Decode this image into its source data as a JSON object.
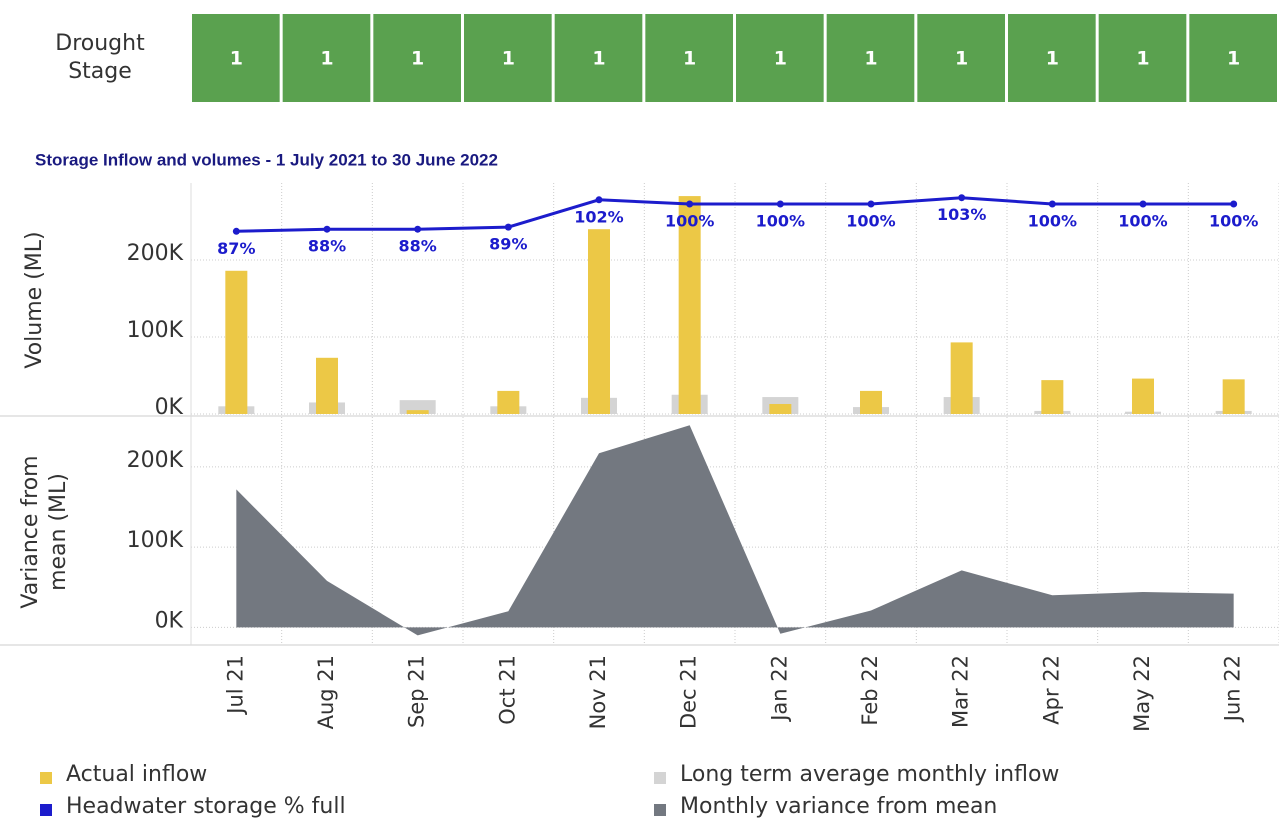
{
  "drought_stage": {
    "label": "Drought Stage",
    "values": [
      1,
      1,
      1,
      1,
      1,
      1,
      1,
      1,
      1,
      1,
      1,
      1
    ],
    "color": "#5aa14f"
  },
  "chart_data": [
    {
      "type": "bar",
      "title": "Storage Inflow and volumes - 1 July 2021 to 30 June 2022",
      "y_label": "Volume (ML)",
      "ylim": [
        0,
        300000
      ],
      "yticks": [
        {
          "value": 0,
          "label": "0K"
        },
        {
          "value": 100000,
          "label": "100K"
        },
        {
          "value": 200000,
          "label": "200K"
        }
      ],
      "y2lim": [
        0,
        110
      ],
      "grid": true,
      "series": [
        {
          "name": "Actual inflow",
          "color": "#ecc846",
          "values": [
            186000,
            73000,
            5000,
            30000,
            240000,
            283000,
            13000,
            30000,
            93000,
            44000,
            46000,
            45000
          ]
        },
        {
          "name": "Headwater storage % full",
          "color": "#1c1ccc",
          "axis": "y2",
          "values": [
            87,
            88,
            88,
            89,
            102,
            100,
            100,
            100,
            103,
            100,
            100,
            100
          ],
          "value_labels": [
            "87%",
            "88%",
            "88%",
            "89%",
            "102%",
            "100%",
            "100%",
            "100%",
            "103%",
            "100%",
            "100%",
            "100%"
          ]
        },
        {
          "name": "Long term average monthly inflow",
          "color": "#d4d4d4",
          "values": [
            10000,
            15000,
            18000,
            10000,
            21000,
            25000,
            22000,
            9000,
            22000,
            4000,
            3000,
            4000
          ]
        }
      ]
    },
    {
      "type": "area",
      "y_label": "Variance from mean (ML)",
      "categories": [
        "Jul 21",
        "Aug 21",
        "Sep 21",
        "Oct 21",
        "Nov 21",
        "Dec 21",
        "Jan 22",
        "Feb 22",
        "Mar 22",
        "Apr 22",
        "May 22",
        "Jun 22"
      ],
      "ylim": [
        -22000,
        261000
      ],
      "yticks": [
        {
          "value": 0,
          "label": "0K"
        },
        {
          "value": 100000,
          "label": "100K"
        },
        {
          "value": 200000,
          "label": "200K"
        }
      ],
      "grid": true,
      "series": [
        {
          "name": "Monthly variance from mean",
          "color": "#737880",
          "values": [
            172000,
            58000,
            -10000,
            20000,
            217000,
            252000,
            -8000,
            21000,
            71000,
            40000,
            44000,
            42000
          ]
        }
      ]
    }
  ]
}
